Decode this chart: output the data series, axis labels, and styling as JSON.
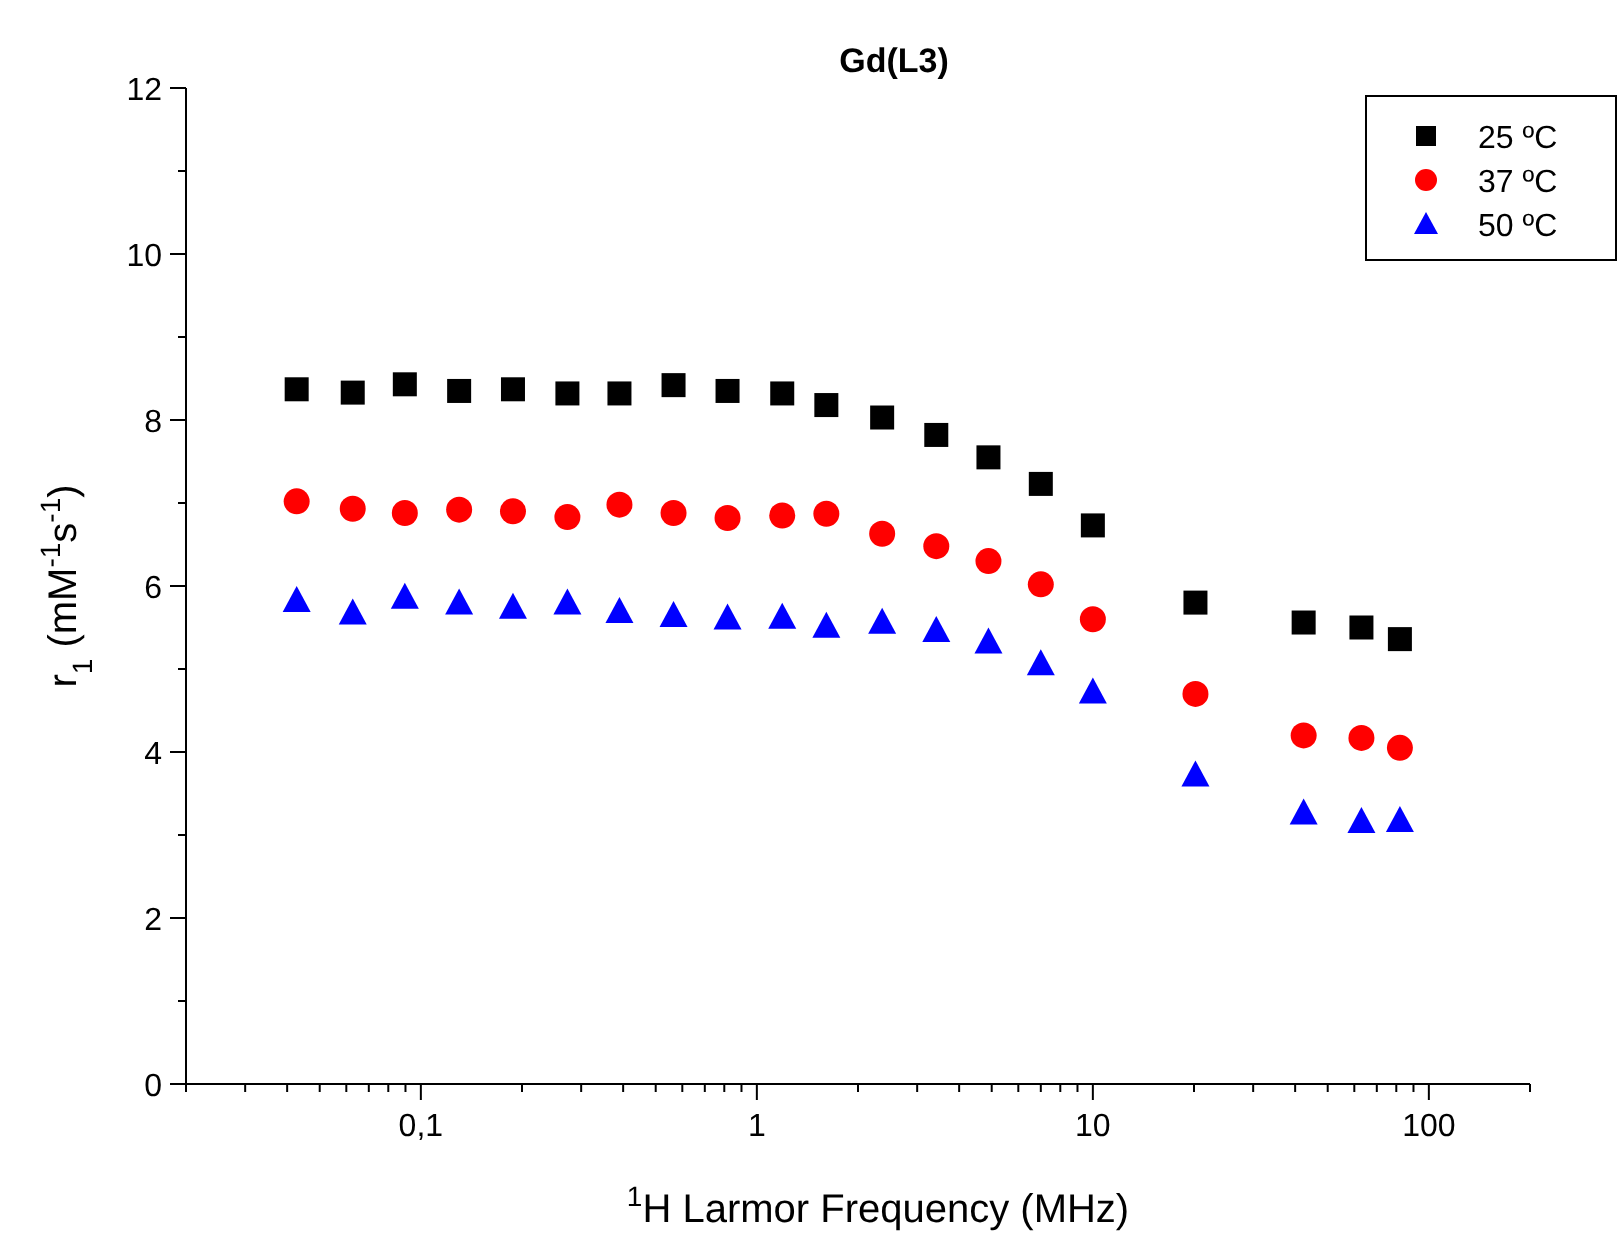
{
  "chart_data": {
    "type": "scatter",
    "title": "Gd(L3)",
    "xlabel": "$^{1}$H Larmor Frequency (MHz)",
    "ylabel": "r$_{1}$ (mM$^{-1}$s$^{-1}$)",
    "x": [
      0.0427,
      0.0627,
      0.0896,
      0.13,
      0.188,
      0.273,
      0.39,
      0.565,
      0.818,
      1.19,
      1.61,
      2.36,
      3.42,
      4.89,
      7.0,
      10,
      20.2,
      42.4,
      63,
      82
    ],
    "series": [
      {
        "name": "25 ºC",
        "color": "#000000",
        "marker": "square",
        "values": [
          8.37,
          8.33,
          8.43,
          8.35,
          8.37,
          8.32,
          8.32,
          8.42,
          8.35,
          8.32,
          8.18,
          8.03,
          7.82,
          7.55,
          7.23,
          6.73,
          5.8,
          5.56,
          5.5,
          5.36
        ]
      },
      {
        "name": "37 ºC",
        "color": "#ff0000",
        "marker": "circle",
        "values": [
          7.02,
          6.93,
          6.88,
          6.92,
          6.9,
          6.83,
          6.98,
          6.88,
          6.82,
          6.85,
          6.87,
          6.63,
          6.48,
          6.3,
          6.02,
          5.6,
          4.7,
          4.2,
          4.17,
          4.05
        ]
      },
      {
        "name": "50 ºC",
        "color": "#0000ff",
        "marker": "triangle",
        "values": [
          5.83,
          5.68,
          5.87,
          5.8,
          5.75,
          5.8,
          5.7,
          5.65,
          5.62,
          5.63,
          5.52,
          5.57,
          5.47,
          5.33,
          5.07,
          4.73,
          3.73,
          3.27,
          3.17,
          3.18
        ]
      }
    ],
    "log": "x",
    "xlim": [
      0.02,
      200
    ],
    "xticks": [
      {
        "value": 0.1,
        "label": "0,1"
      },
      1,
      10,
      100
    ],
    "ylim": [
      0,
      12
    ],
    "yticks": [
      0,
      {
        "value": 1,
        "label": null
      },
      2,
      {
        "value": 3,
        "label": null
      },
      4,
      {
        "value": 5,
        "label": null
      },
      6,
      {
        "value": 7,
        "label": null
      },
      8,
      {
        "value": 9,
        "label": null
      },
      10,
      {
        "value": 11,
        "label": null
      },
      12
    ],
    "grid": false,
    "legend": "top right"
  }
}
